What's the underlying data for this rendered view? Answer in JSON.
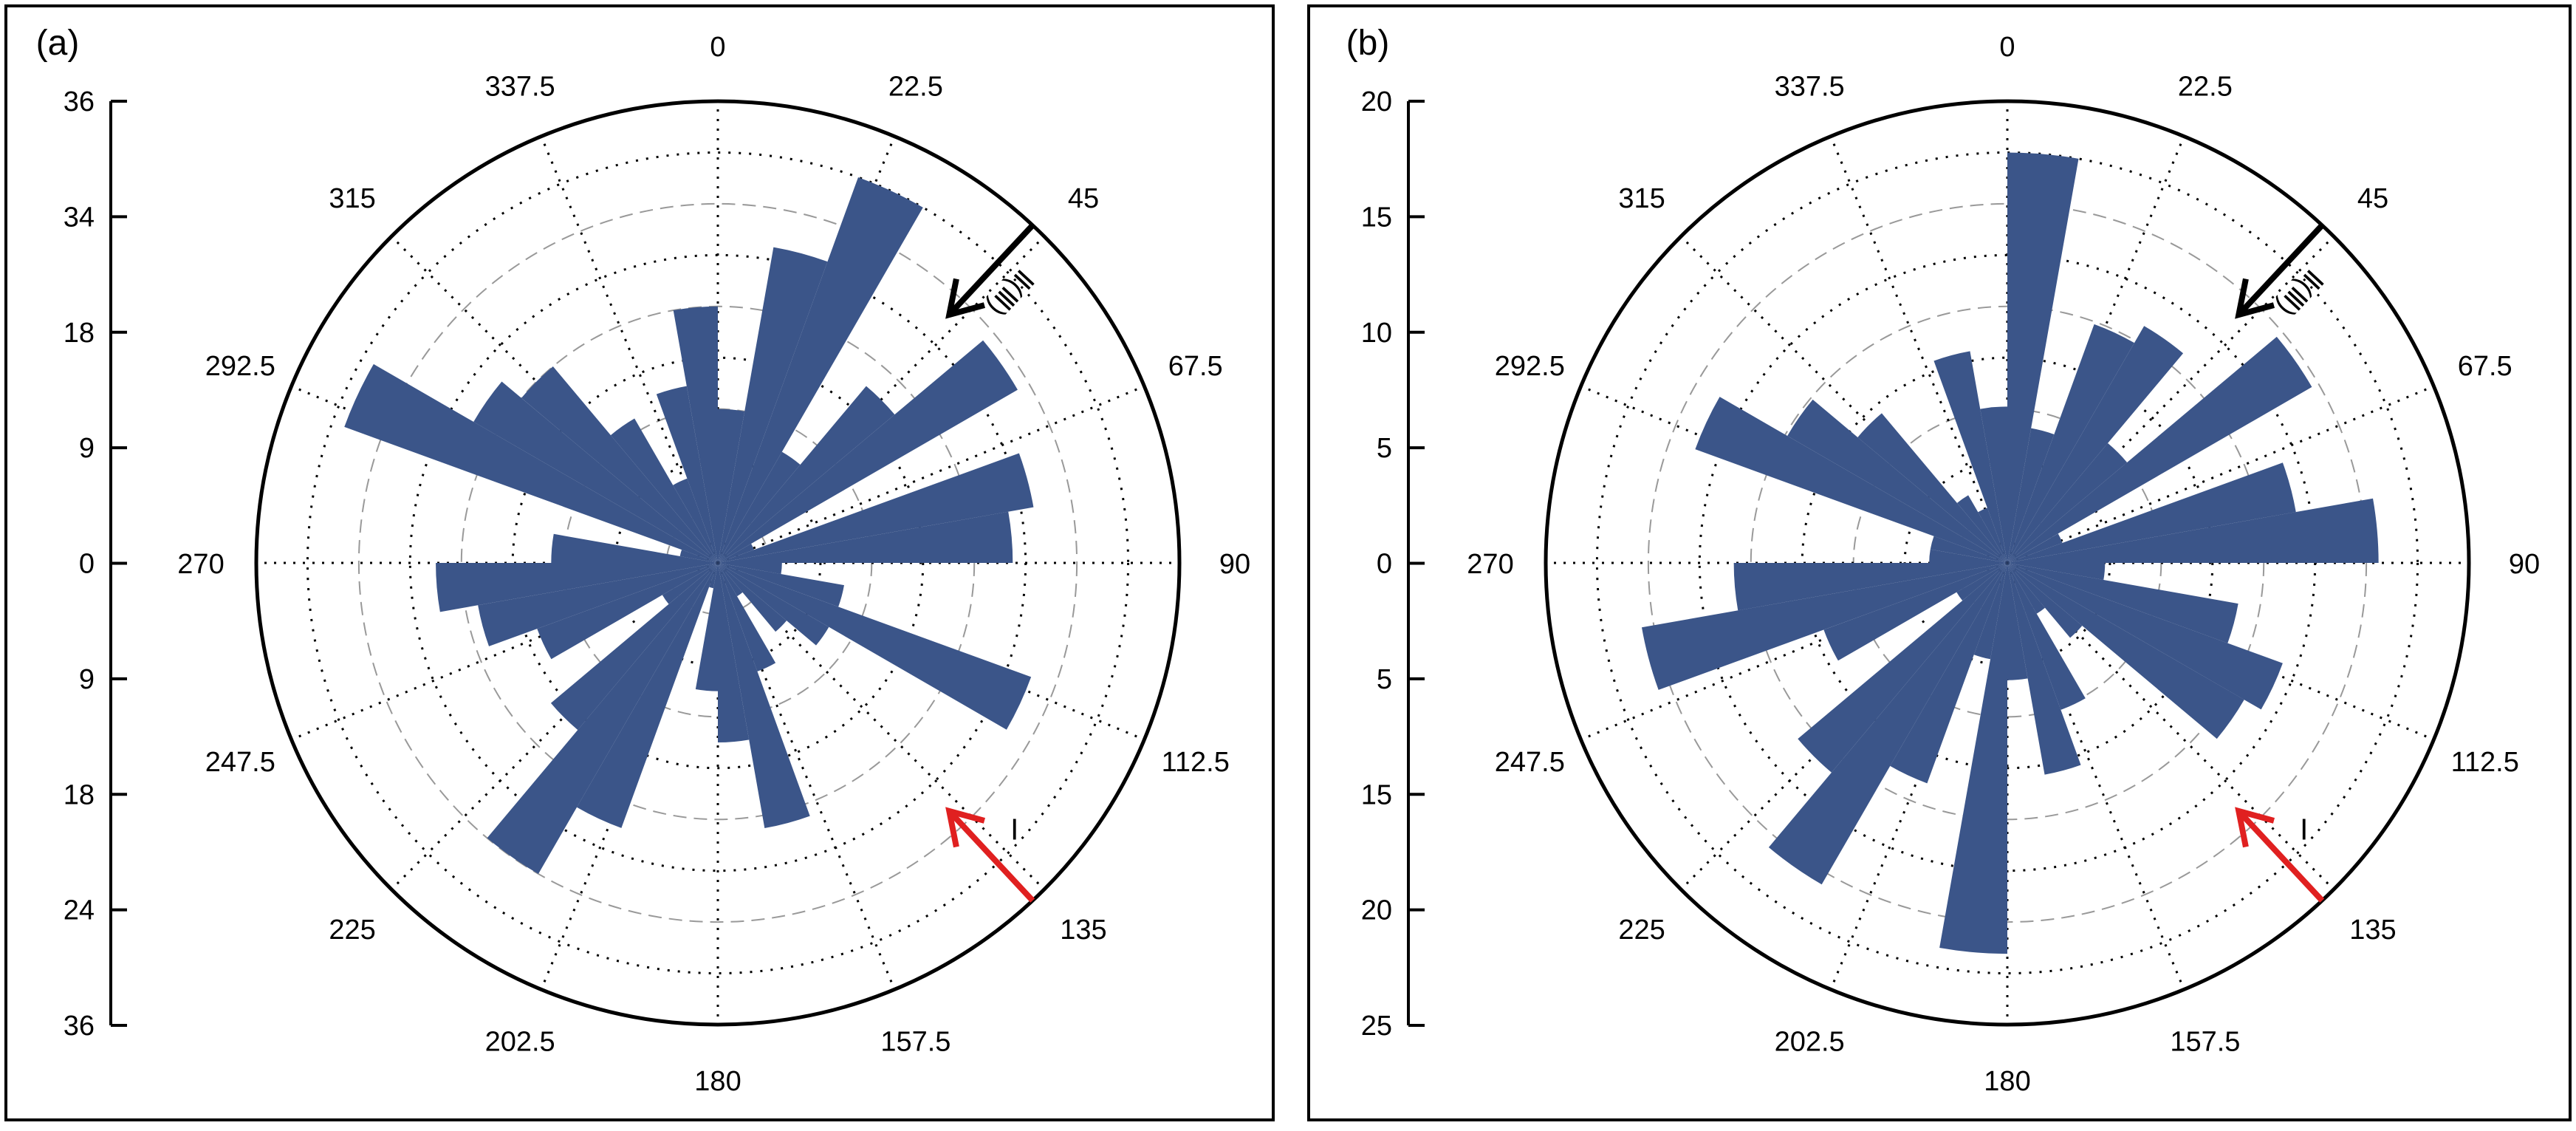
{
  "chart_data": [
    {
      "type": "polar-bar",
      "panel_label": "(a)",
      "radial_ticks": [
        "36",
        "34",
        "18",
        "9",
        "0",
        "9",
        "18",
        "24",
        "36"
      ],
      "angle_labels": [
        "0",
        "22.5",
        "45",
        "67.5",
        "90",
        "112.5",
        "135",
        "157.5",
        "180",
        "202.5",
        "225",
        "247.5",
        "270",
        "292.5",
        "315",
        "337.5"
      ],
      "bar_color": "#3b5589",
      "bins_deg": 10,
      "values": [
        12,
        25,
        32,
        10,
        18,
        27,
        3,
        25,
        23,
        5,
        10,
        26,
        10,
        7,
        3,
        9,
        21,
        14,
        10,
        2,
        22,
        28,
        17,
        5,
        15,
        19,
        22,
        13,
        3,
        31,
        22,
        20,
        13,
        7,
        14,
        20
      ],
      "arrows": [
        {
          "label": "Ⅱ(Ⅲ)",
          "direction_deg": 43,
          "color": "#000000"
        },
        {
          "label": "Ⅰ",
          "direction_deg": 137,
          "color": "#e02020"
        }
      ]
    },
    {
      "type": "polar-bar",
      "panel_label": "(b)",
      "radial_ticks": [
        "20",
        "15",
        "10",
        "5",
        "0",
        "5",
        "15",
        "20",
        "25"
      ],
      "angle_labels": [
        "0",
        "22.5",
        "45",
        "67.5",
        "90",
        "112.5",
        "135",
        "157.5",
        "180",
        "202.5",
        "225",
        "247.5",
        "270",
        "292.5",
        "315",
        "337.5"
      ],
      "bar_color": "#3b5589",
      "bins_deg": 10,
      "values": [
        21,
        7,
        13,
        14,
        8,
        18,
        3,
        15,
        19,
        5,
        12,
        15,
        14,
        5,
        3,
        8,
        11,
        6,
        20,
        5,
        12,
        19,
        14,
        3,
        10,
        19,
        14,
        4,
        4,
        17,
        13,
        10,
        4,
        3,
        11,
        8
      ],
      "arrows": [
        {
          "label": "Ⅱ(Ⅲ)",
          "direction_deg": 43,
          "color": "#000000"
        },
        {
          "label": "Ⅰ",
          "direction_deg": 137,
          "color": "#e02020"
        }
      ]
    }
  ]
}
